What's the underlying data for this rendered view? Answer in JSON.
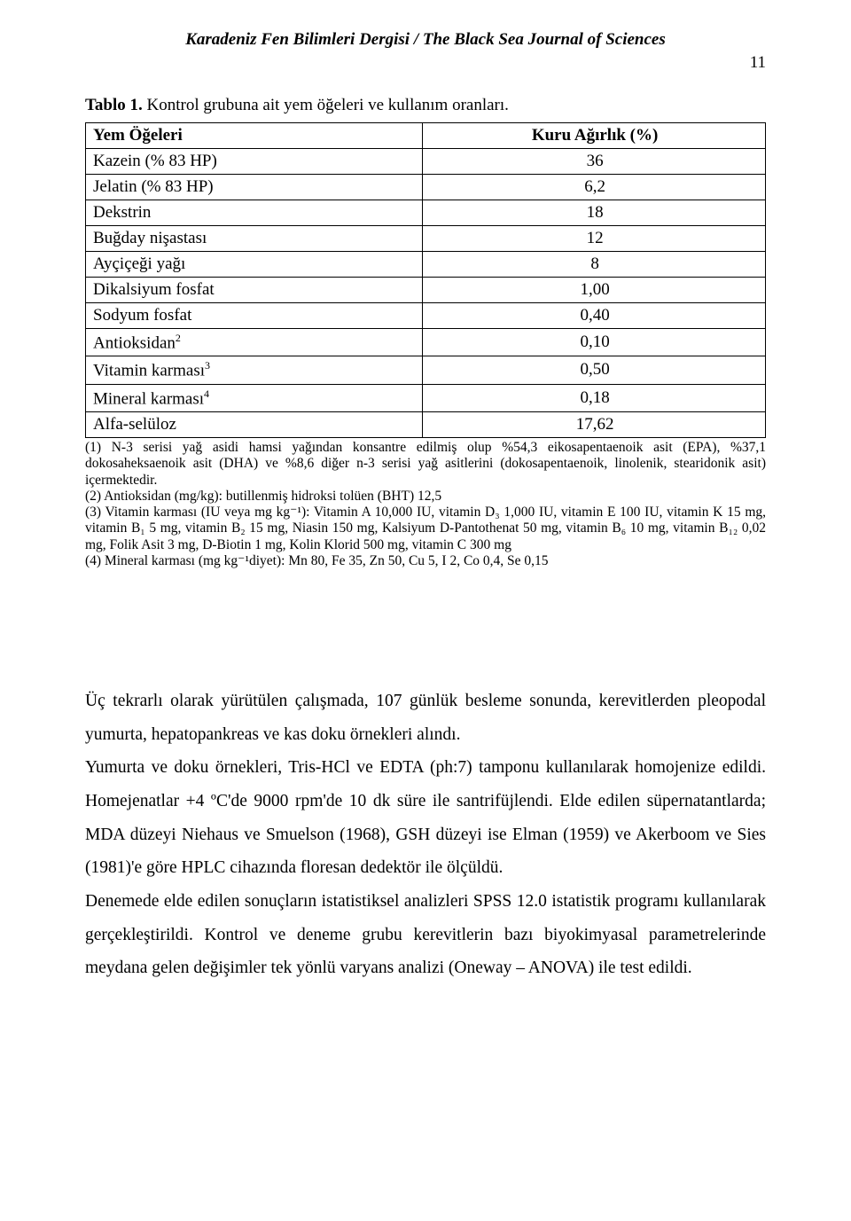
{
  "header": {
    "running_title": "Karadeniz Fen Bilimleri Dergisi / The Black Sea Journal of Sciences",
    "page_number": "11"
  },
  "table": {
    "caption_lead": "Tablo 1.",
    "caption_rest": " Kontrol grubuna ait yem öğeleri ve kullanım oranları.",
    "col1_header": "Yem Öğeleri",
    "col2_header": "Kuru Ağırlık (%)",
    "rows": [
      {
        "label": "Kazein (% 83 HP)",
        "value": "36"
      },
      {
        "label": "Jelatin (% 83 HP)",
        "value": "6,2"
      },
      {
        "label": "Dekstrin",
        "value": "18"
      },
      {
        "label": "Buğday nişastası",
        "value": "12"
      },
      {
        "label": "Ayçiçeği yağı",
        "value": "8"
      },
      {
        "label": "Dikalsiyum fosfat",
        "value": "1,00"
      },
      {
        "label": "Sodyum fosfat",
        "value": "0,40"
      },
      {
        "label": "Antioksidan",
        "sup": "2",
        "value": "0,10"
      },
      {
        "label": "Vitamin karması",
        "sup": "3",
        "value": "0,50"
      },
      {
        "label": "Mineral karması",
        "sup": "4",
        "value": "0,18"
      },
      {
        "label": "Alfa-selüloz",
        "value": "17,62"
      }
    ]
  },
  "footnotes": {
    "n1": "(1) N-3 serisi yağ asidi hamsi yağından konsantre edilmiş olup %54,3 eikosapentaenoik asit (EPA), %37,1 dokosaheksaenoik asit (DHA) ve %8,6 diğer n-3 serisi yağ asitlerini (dokosapentaenoik, linolenik, stearidonik asit) içermektedir.",
    "n2": "(2) Antioksidan (mg/kg):  butillenmiş hidroksi tolüen (BHT) 12,5",
    "n3": "(3) Vitamin karması (IU  veya mg kg⁻¹): Vitamin A 10,000 IU, vitamin D₃ 1,000 IU, vitamin E 100 IU, vitamin K 15 mg, vitamin B₁ 5 mg, vitamin B₂ 15 mg, Niasin 150 mg, Kalsiyum D-Pantothenat 50 mg, vitamin B₆ 10 mg, vitamin B₁₂ 0,02 mg, Folik Asit 3 mg, D-Biotin 1 mg, Kolin Klorid 500 mg, vitamin C 300 mg",
    "n4": "(4) Mineral karması (mg kg⁻¹diyet): Mn 80, Fe 35, Zn 50, Cu 5, I 2, Co 0,4, Se 0,15"
  },
  "body": {
    "p1": "Üç tekrarlı olarak yürütülen çalışmada, 107 günlük besleme sonunda, kerevitlerden pleopodal yumurta, hepatopankreas ve kas doku örnekleri alındı.",
    "p2": "Yumurta ve doku örnekleri, Tris-HCl ve EDTA (ph:7) tamponu kullanılarak homojenize edildi. Homejenatlar  +4 ºC'de 9000 rpm'de 10 dk süre ile santrifüjlendi. Elde edilen süpernatantlarda; MDA düzeyi Niehaus ve Smuelson (1968), GSH düzeyi ise Elman (1959) ve Akerboom ve Sies (1981)'e göre HPLC cihazında floresan dedektör ile ölçüldü.",
    "p3": "Denemede elde edilen sonuçların istatistiksel analizleri SPSS 12.0 istatistik programı kullanılarak gerçekleştirildi. Kontrol ve deneme grubu kerevitlerin bazı biyokimyasal parametrelerinde meydana gelen değişimler tek yönlü varyans analizi (Oneway – ANOVA) ile test edildi."
  }
}
